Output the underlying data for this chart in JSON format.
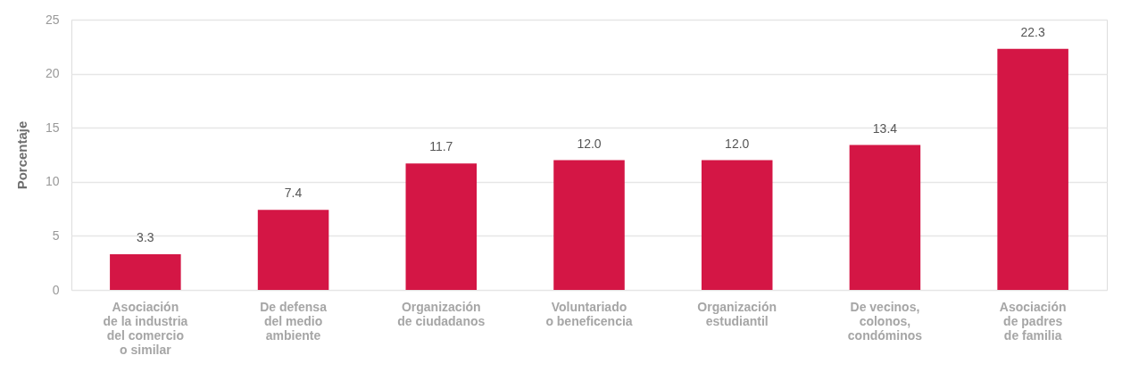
{
  "chart_data": {
    "type": "bar",
    "ylabel": "Porcentaje",
    "categories": [
      "Asociación\nde la industria\ndel comercio\no similar",
      "De defensa\ndel medio\nambiente",
      "Organización\nde ciudadanos",
      "Voluntariado\no beneficencia",
      "Organización\nestudiantil",
      "De vecinos,\ncolonos,\ncondóminos",
      "Asociación\nde padres\nde familia"
    ],
    "values": [
      3.3,
      7.4,
      11.7,
      12.0,
      12.0,
      13.4,
      22.3
    ],
    "value_labels": [
      "3.3",
      "7.4",
      "11.7",
      "12.0",
      "12.0",
      "13.4",
      "22.3"
    ],
    "color": "#d41645",
    "ylim": [
      0,
      25
    ],
    "yticks": [
      0,
      5,
      10,
      15,
      20,
      25
    ],
    "grid": "y"
  }
}
